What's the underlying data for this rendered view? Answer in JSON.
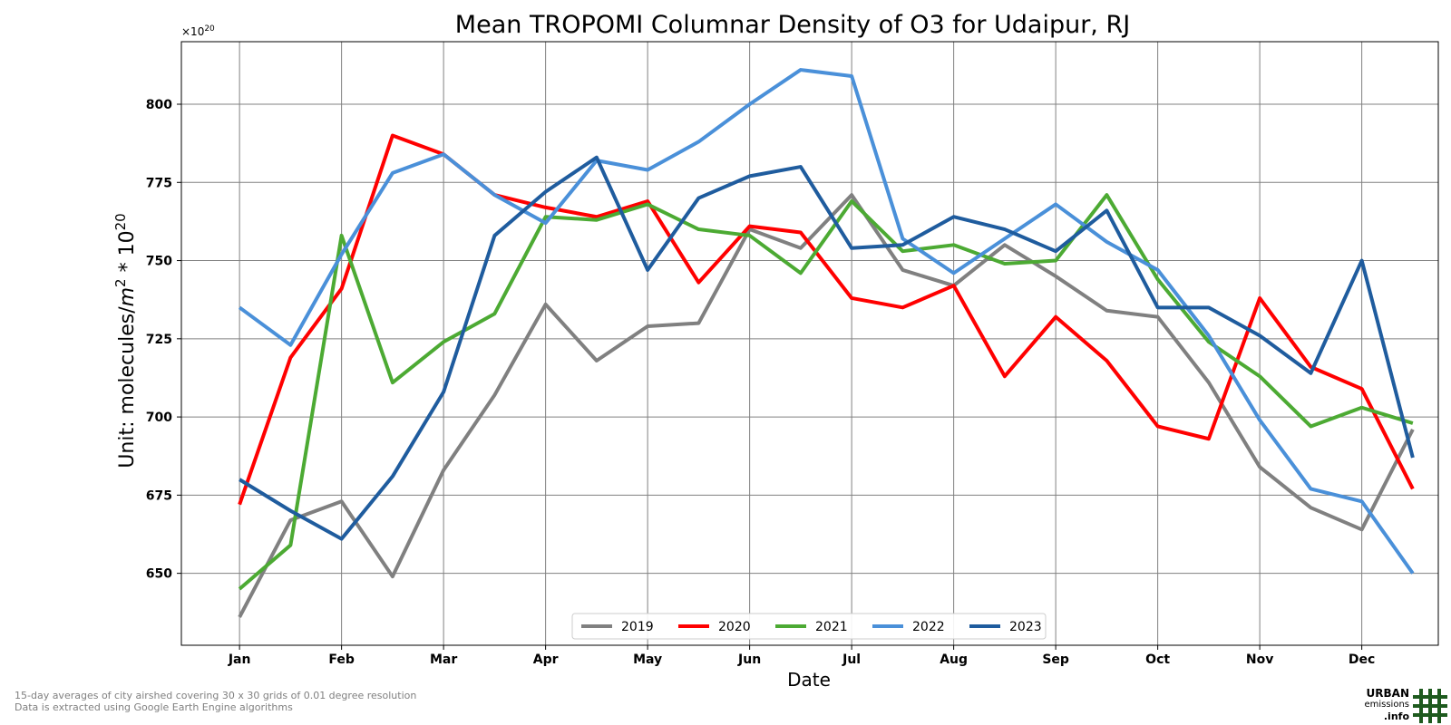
{
  "chart_data": {
    "type": "line",
    "title": "Mean TROPOMI Columnar Density of O3 for Udaipur, RJ",
    "xlabel": "Date",
    "ylabel": "Unit: molecules/m² * 10²⁰",
    "ylabel_base": "Unit: molecules/",
    "ylabel_mid": "m",
    "ylabel_sup1": "2",
    "ylabel_join": " * 10",
    "ylabel_sup2": "20",
    "offset_base": "×10",
    "offset_exp": "20",
    "ylim": [
      627,
      820
    ],
    "xlim": [
      0.43,
      12.75
    ],
    "y_ticks": [
      650,
      675,
      700,
      725,
      750,
      775,
      800
    ],
    "month_labels": [
      "Jan",
      "Feb",
      "Mar",
      "Apr",
      "May",
      "Jun",
      "Jul",
      "Aug",
      "Sep",
      "Oct",
      "Nov",
      "Dec"
    ],
    "grid": true,
    "legend_position": "bottom-center",
    "x": [
      1,
      1.5,
      2,
      2.5,
      3,
      3.5,
      4,
      4.5,
      5,
      5.5,
      6,
      6.5,
      7,
      7.5,
      8,
      8.5,
      9,
      9.5,
      10,
      10.5,
      11,
      11.5,
      12,
      12.5
    ],
    "series": [
      {
        "name": "2019",
        "color": "#808080",
        "values": [
          636,
          667,
          673,
          649,
          683,
          707,
          736,
          718,
          729,
          730,
          760,
          754,
          771,
          747,
          742,
          755,
          745,
          734,
          732,
          711,
          684,
          671,
          664,
          696
        ]
      },
      {
        "name": "2020",
        "color": "#ff0000",
        "values": [
          672,
          719,
          741,
          790,
          784,
          771,
          767,
          764,
          769,
          743,
          761,
          759,
          738,
          735,
          742,
          713,
          732,
          718,
          697,
          693,
          738,
          716,
          709,
          677
        ]
      },
      {
        "name": "2021",
        "color": "#4caa33",
        "values": [
          645,
          659,
          758,
          711,
          724,
          733,
          764,
          763,
          768,
          760,
          758,
          746,
          769,
          753,
          755,
          749,
          750,
          771,
          744,
          724,
          713,
          697,
          703,
          698
        ]
      },
      {
        "name": "2022",
        "color": "#4a90d9",
        "values": [
          735,
          723,
          752,
          778,
          784,
          771,
          762,
          782,
          779,
          788,
          800,
          811,
          809,
          757,
          746,
          757,
          768,
          756,
          747,
          726,
          699,
          677,
          673,
          650
        ]
      },
      {
        "name": "2023",
        "color": "#1f5c9e",
        "values": [
          680,
          670,
          661,
          681,
          708,
          758,
          772,
          783,
          747,
          770,
          777,
          780,
          754,
          755,
          764,
          760,
          753,
          766,
          735,
          735,
          726,
          714,
          750,
          687
        ]
      }
    ]
  },
  "footnote_line1": "15-day averages of city airshed covering 30 x 30 grids of 0.01 degree resolution",
  "footnote_line2": "Data is extracted using Google Earth Engine algorithms",
  "logo": {
    "line1": "URBAN",
    "line2": "emissions",
    "line3": ".info",
    "color": "#1e5a1e"
  }
}
